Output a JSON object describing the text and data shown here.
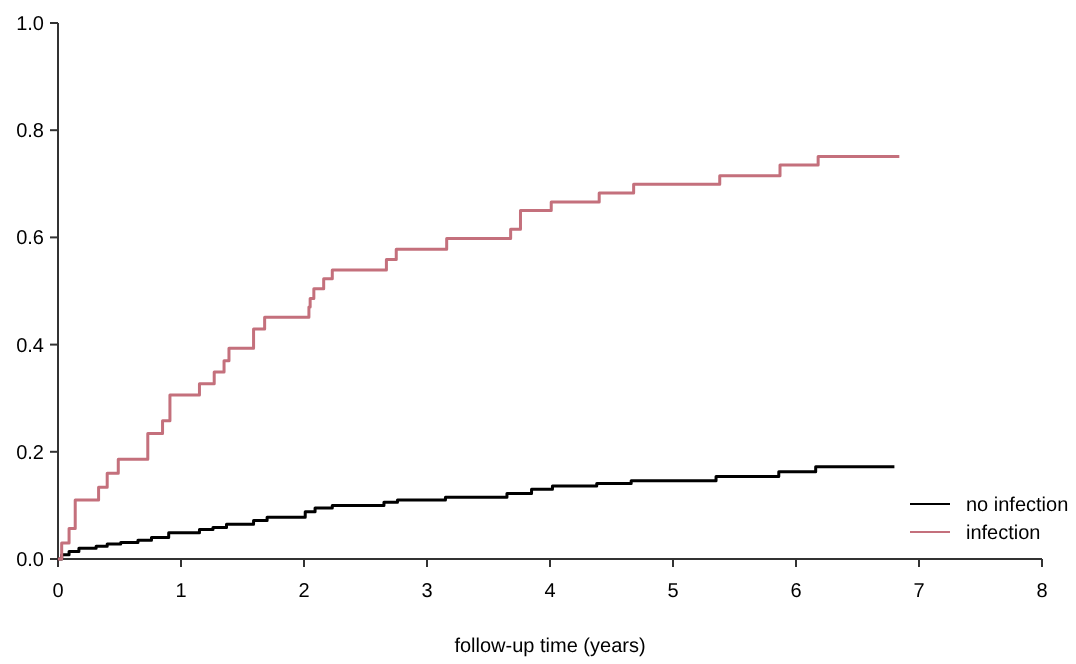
{
  "chart_data": {
    "type": "step",
    "xlabel": "follow-up time (years)",
    "xlim": [
      0,
      8
    ],
    "xticks": [
      0,
      1,
      2,
      3,
      4,
      5,
      6,
      7,
      8
    ],
    "ylim": [
      0,
      1
    ],
    "yticks": [
      {
        "value": 0,
        "label": "0.0"
      },
      {
        "value": 0.2,
        "label": "0.2"
      },
      {
        "value": 0.4,
        "label": "0.4"
      },
      {
        "value": 0.6,
        "label": "0.6"
      },
      {
        "value": 0.8,
        "label": "0.8"
      },
      {
        "value": 1,
        "label": "1.0"
      }
    ],
    "grid": false,
    "legend": "bottom right",
    "series": [
      {
        "name": "no infection",
        "color": "#000000",
        "x": [
          0,
          0.03,
          0.09,
          0.17,
          0.31,
          0.4,
          0.51,
          0.65,
          0.76,
          0.9,
          1.15,
          1.26,
          1.37,
          1.59,
          1.7,
          2.01,
          2.09,
          2.23,
          2.65,
          2.76,
          3.15,
          3.65,
          3.85,
          4.02,
          4.38,
          4.66,
          5.35,
          5.86,
          6.16,
          6.8
        ],
        "values": [
          0,
          0.008,
          0.014,
          0.02,
          0.024,
          0.028,
          0.031,
          0.035,
          0.04,
          0.049,
          0.055,
          0.059,
          0.065,
          0.072,
          0.078,
          0.088,
          0.095,
          0.1,
          0.106,
          0.11,
          0.115,
          0.122,
          0.13,
          0.136,
          0.141,
          0.146,
          0.154,
          0.163,
          0.172,
          0.172
        ]
      },
      {
        "name": "infection",
        "color": "#c4707c",
        "x": [
          0,
          0.03,
          0.09,
          0.14,
          0.33,
          0.4,
          0.49,
          0.73,
          0.85,
          0.91,
          1.15,
          1.27,
          1.35,
          1.39,
          1.59,
          1.68,
          2.04,
          2.05,
          2.08,
          2.16,
          2.23,
          2.67,
          2.75,
          3.16,
          3.68,
          3.76,
          4.01,
          4.4,
          4.68,
          5.38,
          5.87,
          6.18,
          6.84
        ],
        "values": [
          0,
          0.03,
          0.057,
          0.11,
          0.134,
          0.16,
          0.186,
          0.234,
          0.258,
          0.306,
          0.327,
          0.349,
          0.37,
          0.393,
          0.429,
          0.451,
          0.47,
          0.486,
          0.504,
          0.523,
          0.539,
          0.559,
          0.578,
          0.598,
          0.615,
          0.65,
          0.666,
          0.683,
          0.699,
          0.715,
          0.735,
          0.751,
          0.751
        ]
      }
    ]
  }
}
